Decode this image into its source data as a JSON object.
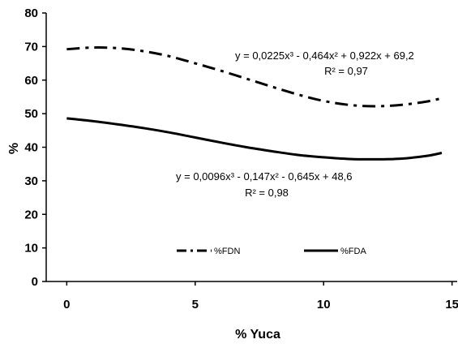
{
  "chart_data": {
    "type": "line",
    "title": "",
    "xlabel": "% Yuca",
    "ylabel": "%",
    "xlim": [
      -0.8,
      15.2
    ],
    "ylim": [
      0,
      80
    ],
    "x_ticks": [
      "0",
      "5",
      "10",
      "15"
    ],
    "y_ticks": [
      "0",
      "10",
      "20",
      "30",
      "40",
      "50",
      "60",
      "70",
      "80"
    ],
    "grid": false,
    "legend_position": "bottom-center",
    "series": [
      {
        "name": "%FDN",
        "style": "dash-dot",
        "color": "#000000",
        "x": [
          0,
          1,
          2,
          3,
          4,
          5,
          6,
          7,
          8,
          9,
          10,
          11,
          12,
          13,
          14,
          14.6
        ],
        "values": [
          69.2,
          69.7,
          69.5,
          68.6,
          67.1,
          65.0,
          62.8,
          60.4,
          58.0,
          55.7,
          53.8,
          52.6,
          52.2,
          52.6,
          53.6,
          54.6
        ],
        "equation": "y = 0,0225x³ - 0,464x² + 0,922x + 69,2",
        "r2": "R² = 0,97"
      },
      {
        "name": "%FDA",
        "style": "solid",
        "color": "#000000",
        "x": [
          0,
          1,
          2,
          3,
          4,
          5,
          6,
          7,
          8,
          9,
          10,
          11,
          12,
          13,
          14,
          14.6
        ],
        "values": [
          48.6,
          47.8,
          46.8,
          45.7,
          44.4,
          42.9,
          41.4,
          40.0,
          38.8,
          37.7,
          37.0,
          36.5,
          36.4,
          36.6,
          37.4,
          38.3
        ],
        "equation": "y = 0,0096x³ - 0,147x² - 0,645x + 48,6",
        "r2": "R² = 0,98"
      }
    ]
  }
}
